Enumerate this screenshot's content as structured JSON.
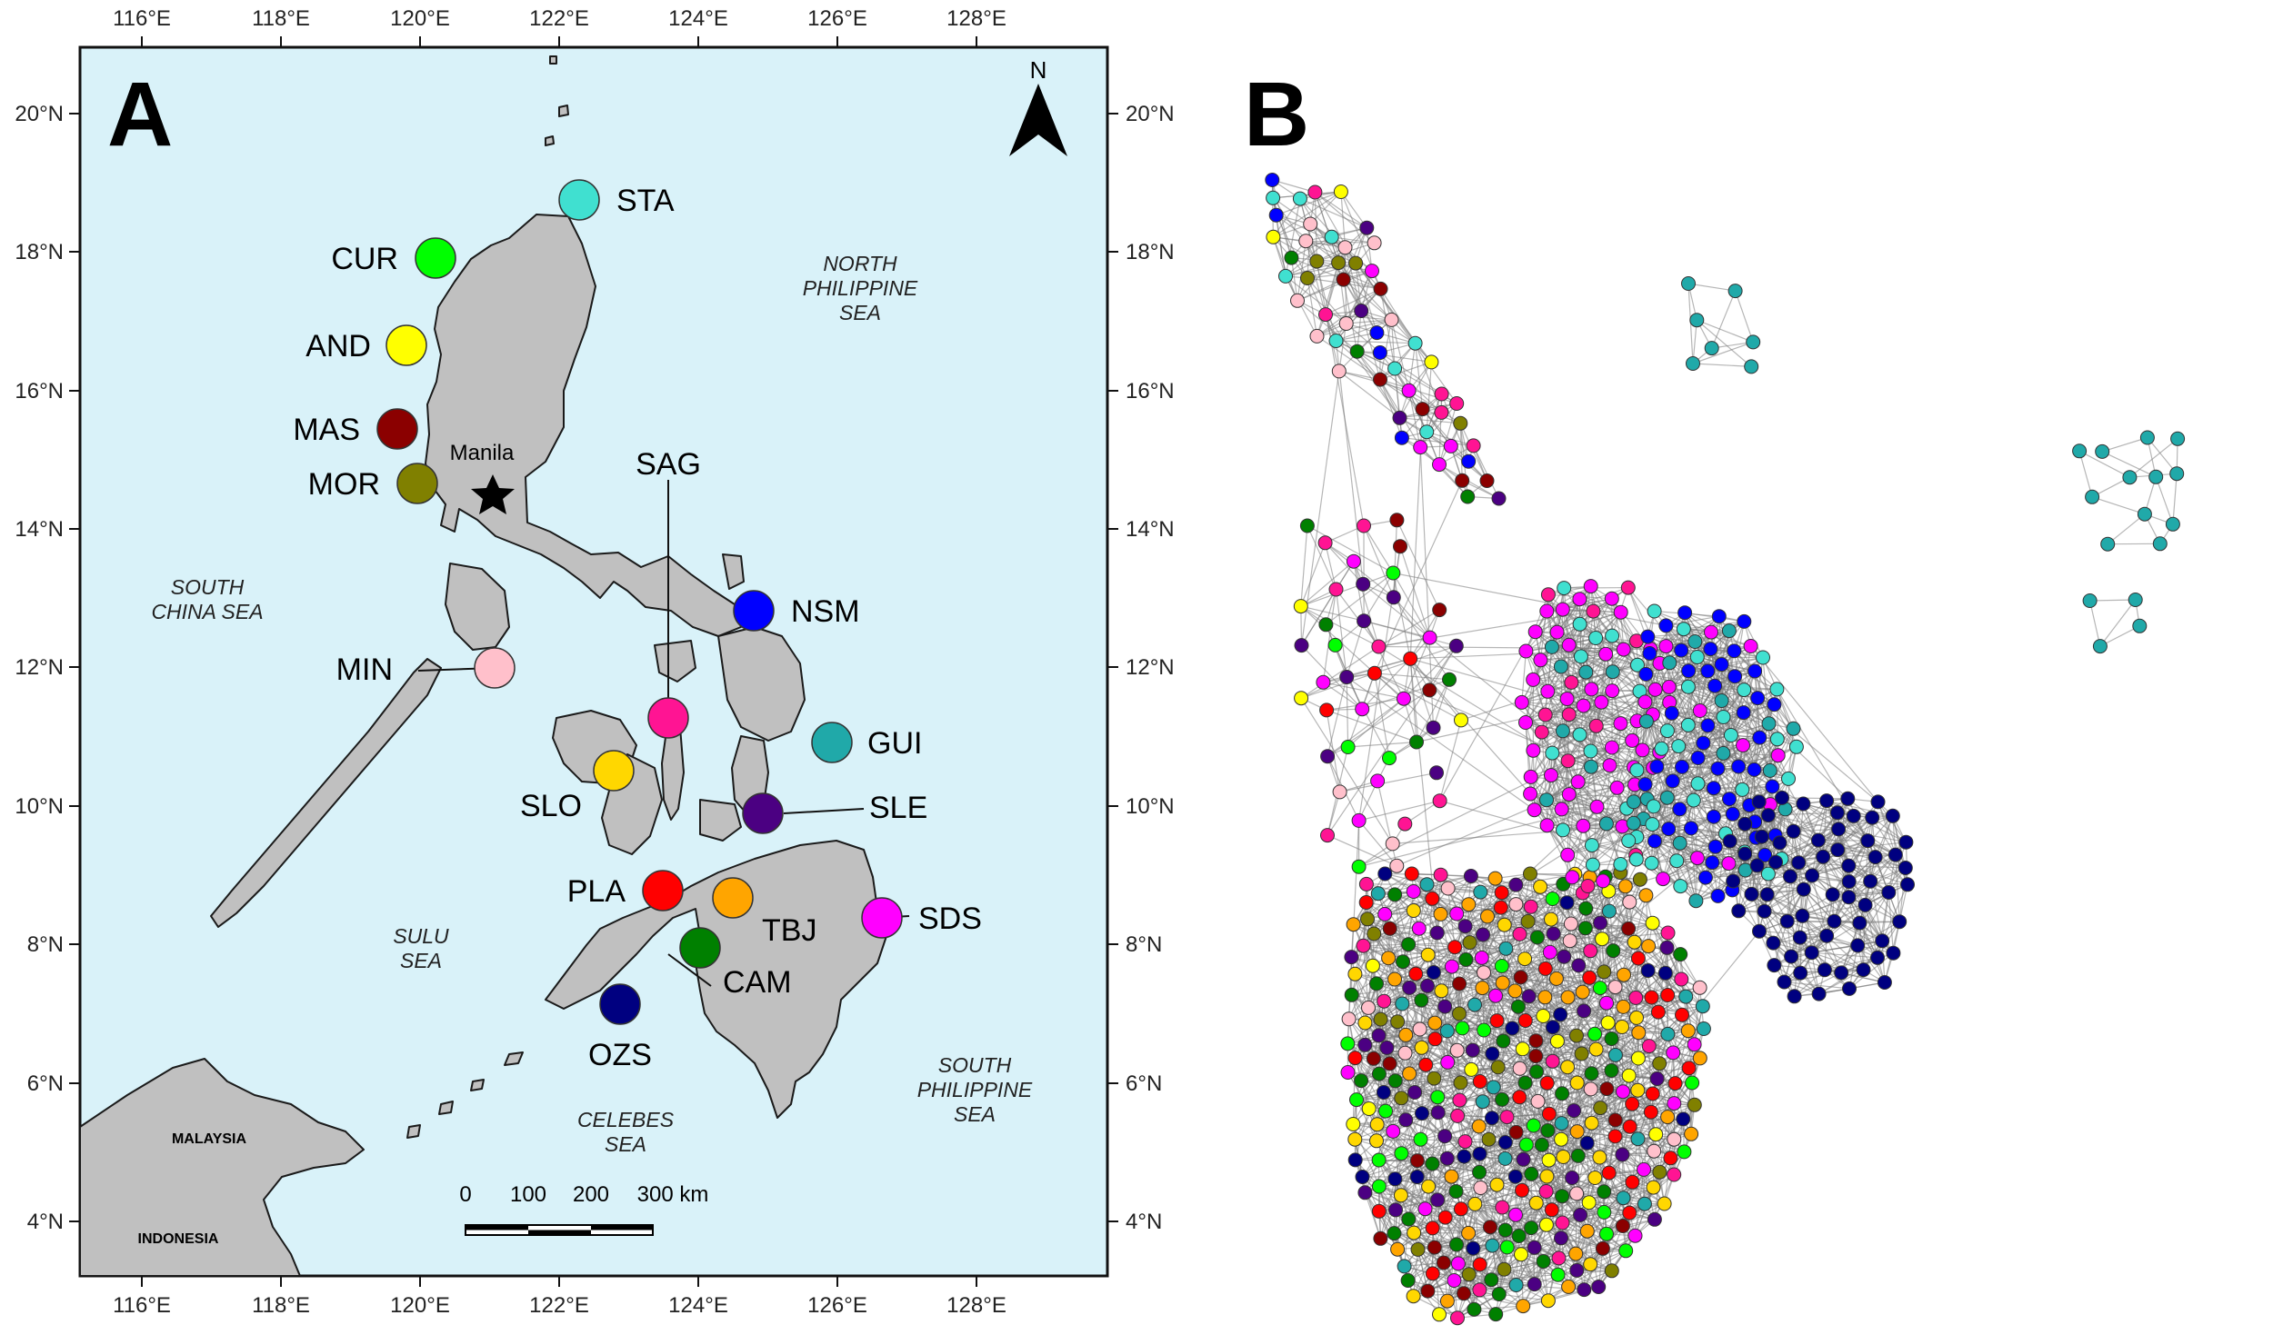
{
  "panel_a": {
    "label": "A",
    "north_label": "N",
    "city": "Manila",
    "lon_ticks": [
      "116°E",
      "118°E",
      "120°E",
      "122°E",
      "124°E",
      "126°E",
      "128°E"
    ],
    "lat_ticks": [
      "20°N",
      "18°N",
      "16°N",
      "14°N",
      "12°N",
      "10°N",
      "8°N",
      "6°N",
      "4°N"
    ],
    "scale_labels": [
      "0",
      "100",
      "200",
      "300 km"
    ],
    "seas": {
      "north_philippine": [
        "NORTH",
        "PHILIPPINE",
        "SEA"
      ],
      "south_china": [
        "SOUTH",
        "CHINA SEA"
      ],
      "sulu": [
        "SULU",
        "SEA"
      ],
      "celebes": [
        "CELEBES",
        "SEA"
      ],
      "south_philippine": [
        "SOUTH",
        "PHILIPPINE",
        "SEA"
      ]
    },
    "countries": [
      "MALAYSIA",
      "INDONESIA"
    ],
    "colors": {
      "sea": "#d9f2f9",
      "land": "#c0c0c0",
      "coast": "#1a1a1a"
    },
    "sites": [
      {
        "code": "STA",
        "color": "#40e0d0"
      },
      {
        "code": "CUR",
        "color": "#00ff00"
      },
      {
        "code": "AND",
        "color": "#ffff00"
      },
      {
        "code": "MAS",
        "color": "#8b0000"
      },
      {
        "code": "MOR",
        "color": "#808000"
      },
      {
        "code": "SAG",
        "color": "#ff1493"
      },
      {
        "code": "NSM",
        "color": "#0000ff"
      },
      {
        "code": "MIN",
        "color": "#ffc0cb"
      },
      {
        "code": "GUI",
        "color": "#20a9a9"
      },
      {
        "code": "SLO",
        "color": "#ffd700"
      },
      {
        "code": "SLE",
        "color": "#4b0082"
      },
      {
        "code": "PLA",
        "color": "#ff0000"
      },
      {
        "code": "TBJ",
        "color": "#ffa500"
      },
      {
        "code": "SDS",
        "color": "#ff00ff"
      },
      {
        "code": "CAM",
        "color": "#008000"
      },
      {
        "code": "OZS",
        "color": "#000080"
      }
    ]
  },
  "panel_b": {
    "label": "B",
    "edge_color": "#7a7a7a"
  }
}
